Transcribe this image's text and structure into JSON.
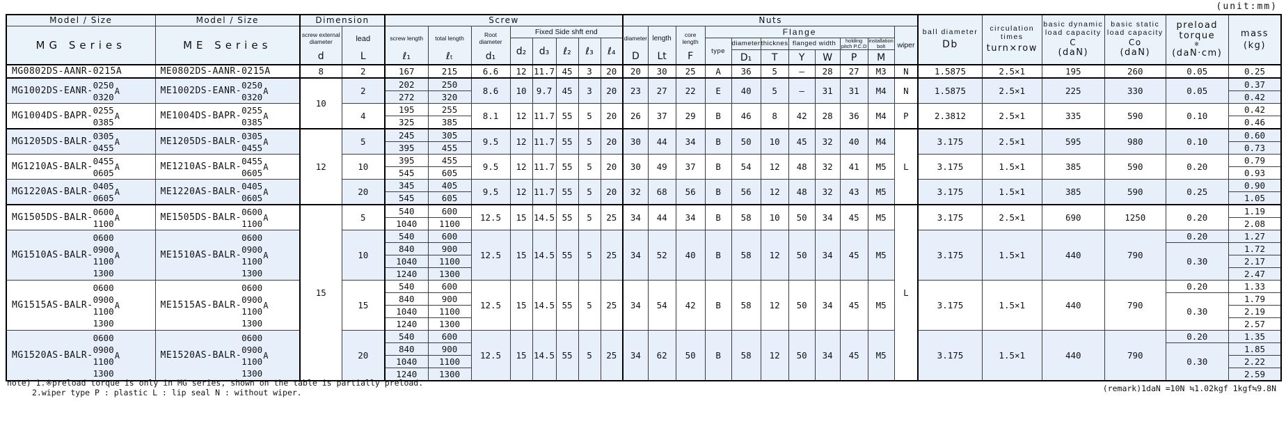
{
  "unit_label": "(unit:mm)",
  "header": {
    "model_size": "Model / Size",
    "mg_series": "MG Series",
    "me_series": "ME Series",
    "dimension": "Dimension",
    "screw": "Screw",
    "nuts": "Nuts",
    "screw_external_diameter": "screw external diameter",
    "d": "d",
    "lead": "lead",
    "L": "L",
    "screw_length": "screw length",
    "l1": "ℓ₁",
    "total_length": "total length",
    "lt": "ℓₜ",
    "root_diameter": "Root diameter",
    "d1": "d₁",
    "fixed_side": "Fixed Side shft end",
    "d2": "d₂",
    "d3": "d₃",
    "l2": "ℓ₂",
    "l3": "ℓ₃",
    "l4": "ℓ₄",
    "diameter": "diameter",
    "D": "D",
    "length": "length",
    "Lt": "Lt",
    "core_length": "core length",
    "F": "F",
    "flange": "Flange",
    "type": "type",
    "flange_diameter": "diameter",
    "D1": "D₁",
    "thickness": "thickness",
    "T": "T",
    "flanged_width": "flanged width",
    "Y": "Y",
    "W": "W",
    "holding_pitch_1": "holding",
    "holding_pitch_2": "pitch P.C.D",
    "P": "P",
    "installation_1": "installation",
    "installation_2": "bolt",
    "M": "M",
    "wiper": "wiper",
    "ball_diameter": "ball diameter",
    "Db": "Db",
    "circulation_times": "circulation times",
    "turn_row": "turn×row",
    "basic_dynamic": "basic dynamic load capacity",
    "C": "C",
    "daN": "(daN)",
    "basic_static": "basic static load capacity",
    "Co": "Co",
    "preload_torque": "preload torque",
    "ref_mark": "※",
    "daN_cm": "(daN·cm)",
    "mass": "mass",
    "kg": "(kg)"
  },
  "group_top_rows": [
    1,
    3,
    6
  ],
  "rows": [
    {
      "shaded": false,
      "mg": {
        "name": "MG0802DS-AANR-0215A"
      },
      "me": {
        "name": "ME0802DS-AANR-0215A"
      },
      "d": {
        "value": "8",
        "rowspan": 1
      },
      "lead": "2",
      "l1": [
        "167"
      ],
      "lt": [
        "215"
      ],
      "d1": "6.6",
      "d2": "12",
      "d3": "11.7",
      "l2": "45",
      "l3": "3",
      "l4": "20",
      "D": "20",
      "Lt": "30",
      "F": "25",
      "type": "A",
      "D1": "36",
      "T": "5",
      "Y": "—",
      "W": "28",
      "P": "27",
      "M": "M3",
      "wiper": {
        "value": "N",
        "rowspan": 1
      },
      "Db": "1.5875",
      "circ": "2.5×1",
      "C": "195",
      "Co": "260",
      "preload": [
        {
          "start": 0,
          "rowspan": 1,
          "value": "0.05"
        }
      ],
      "mass": [
        "0.25"
      ]
    },
    {
      "shaded": true,
      "mg": {
        "name": "MG1002DS-EANR-",
        "sizes": [
          "0250",
          "0320"
        ],
        "suffix": "A"
      },
      "me": {
        "name": "ME1002DS-EANR-",
        "sizes": [
          "0250",
          "0320"
        ],
        "suffix": "A"
      },
      "d": {
        "value": "10",
        "rowspan": 4
      },
      "lead": "2",
      "l1": [
        "202",
        "272"
      ],
      "lt": [
        "250",
        "320"
      ],
      "d1": "8.6",
      "d2": "10",
      "d3": "9.7",
      "l2": "45",
      "l3": "3",
      "l4": "20",
      "D": "23",
      "Lt": "27",
      "F": "22",
      "type": "E",
      "D1": "40",
      "T": "5",
      "Y": "—",
      "W": "31",
      "P": "31",
      "M": "M4",
      "wiper": {
        "value": "N",
        "rowspan": 2
      },
      "Db": "1.5875",
      "circ": "2.5×1",
      "C": "225",
      "Co": "330",
      "preload": [
        {
          "start": 0,
          "rowspan": 2,
          "value": "0.05"
        }
      ],
      "mass": [
        "0.37",
        "0.42"
      ]
    },
    {
      "shaded": false,
      "mg": {
        "name": "MG1004DS-BAPR-",
        "sizes": [
          "0255",
          "0385"
        ],
        "suffix": "A"
      },
      "me": {
        "name": "ME1004DS-BAPR-",
        "sizes": [
          "0255",
          "0385"
        ],
        "suffix": "A"
      },
      "lead": "4",
      "l1": [
        "195",
        "325"
      ],
      "lt": [
        "255",
        "385"
      ],
      "d1": "8.1",
      "d2": "12",
      "d3": "11.7",
      "l2": "55",
      "l3": "5",
      "l4": "20",
      "D": "26",
      "Lt": "37",
      "F": "29",
      "type": "B",
      "D1": "46",
      "T": "8",
      "Y": "42",
      "W": "28",
      "P": "36",
      "M": "M4",
      "wiper": {
        "value": "P",
        "rowspan": 2
      },
      "Db": "2.3812",
      "circ": "2.5×1",
      "C": "335",
      "Co": "590",
      "preload": [
        {
          "start": 0,
          "rowspan": 2,
          "value": "0.10"
        }
      ],
      "mass": [
        "0.42",
        "0.46"
      ]
    },
    {
      "shaded": true,
      "mg": {
        "name": "MG1205DS-BALR-",
        "sizes": [
          "0305",
          "0455"
        ],
        "suffix": "A"
      },
      "me": {
        "name": "ME1205DS-BALR-",
        "sizes": [
          "0305",
          "0455"
        ],
        "suffix": "A"
      },
      "d": {
        "value": "12",
        "rowspan": 6
      },
      "lead": "5",
      "l1": [
        "245",
        "395"
      ],
      "lt": [
        "305",
        "455"
      ],
      "d1": "9.5",
      "d2": "12",
      "d3": "11.7",
      "l2": "55",
      "l3": "5",
      "l4": "20",
      "D": "30",
      "Lt": "44",
      "F": "34",
      "type": "B",
      "D1": "50",
      "T": "10",
      "Y": "45",
      "W": "32",
      "P": "40",
      "M": "M4",
      "wiper": {
        "value": "L",
        "rowspan": 6
      },
      "Db": "3.175",
      "circ": "2.5×1",
      "C": "595",
      "Co": "980",
      "preload": [
        {
          "start": 0,
          "rowspan": 2,
          "value": "0.10"
        }
      ],
      "mass": [
        "0.60",
        "0.73"
      ]
    },
    {
      "shaded": false,
      "mg": {
        "name": "MG1210AS-BALR-",
        "sizes": [
          "0455",
          "0605"
        ],
        "suffix": "A"
      },
      "me": {
        "name": "ME1210AS-BALR-",
        "sizes": [
          "0455",
          "0605"
        ],
        "suffix": "A"
      },
      "lead": "10",
      "l1": [
        "395",
        "545"
      ],
      "lt": [
        "455",
        "605"
      ],
      "d1": "9.5",
      "d2": "12",
      "d3": "11.7",
      "l2": "55",
      "l3": "5",
      "l4": "20",
      "D": "30",
      "Lt": "49",
      "F": "37",
      "type": "B",
      "D1": "54",
      "T": "12",
      "Y": "48",
      "W": "32",
      "P": "41",
      "M": "M5",
      "Db": "3.175",
      "circ": "1.5×1",
      "C": "385",
      "Co": "590",
      "preload": [
        {
          "start": 0,
          "rowspan": 2,
          "value": "0.20"
        }
      ],
      "mass": [
        "0.79",
        "0.93"
      ]
    },
    {
      "shaded": true,
      "mg": {
        "name": "MG1220AS-BALR-",
        "sizes": [
          "0405",
          "0605"
        ],
        "suffix": "A"
      },
      "me": {
        "name": "ME1220AS-BALR-",
        "sizes": [
          "0405",
          "0605"
        ],
        "suffix": "A"
      },
      "lead": "20",
      "l1": [
        "345",
        "545"
      ],
      "lt": [
        "405",
        "605"
      ],
      "d1": "9.5",
      "d2": "12",
      "d3": "11.7",
      "l2": "55",
      "l3": "5",
      "l4": "20",
      "D": "32",
      "Lt": "68",
      "F": "56",
      "type": "B",
      "D1": "56",
      "T": "12",
      "Y": "48",
      "W": "32",
      "P": "43",
      "M": "M5",
      "Db": "3.175",
      "circ": "1.5×1",
      "C": "385",
      "Co": "590",
      "preload": [
        {
          "start": 0,
          "rowspan": 2,
          "value": "0.25"
        }
      ],
      "mass": [
        "0.90",
        "1.05"
      ]
    },
    {
      "shaded": false,
      "mg": {
        "name": "MG1505DS-BALR-",
        "sizes": [
          "0600",
          "1100"
        ],
        "suffix": "A"
      },
      "me": {
        "name": "ME1505DS-BALR-",
        "sizes": [
          "0600",
          "1100"
        ],
        "suffix": "A"
      },
      "d": {
        "value": "15",
        "rowspan": 14
      },
      "lead": "5",
      "l1": [
        "540",
        "1040"
      ],
      "lt": [
        "600",
        "1100"
      ],
      "d1": "12.5",
      "d2": "15",
      "d3": "14.5",
      "l2": "55",
      "l3": "5",
      "l4": "25",
      "D": "34",
      "Lt": "44",
      "F": "34",
      "type": "B",
      "D1": "58",
      "T": "10",
      "Y": "50",
      "W": "34",
      "P": "45",
      "M": "M5",
      "wiper": {
        "value": "L",
        "rowspan": 14
      },
      "Db": "3.175",
      "circ": "2.5×1",
      "C": "690",
      "Co": "1250",
      "preload": [
        {
          "start": 0,
          "rowspan": 2,
          "value": "0.20"
        }
      ],
      "mass": [
        "1.19",
        "2.08"
      ]
    },
    {
      "shaded": true,
      "mg": {
        "name": "MG1510AS-BALR-",
        "sizes": [
          "0600",
          "0900",
          "1100",
          "1300"
        ],
        "suffix": "A"
      },
      "me": {
        "name": "ME1510AS-BALR-",
        "sizes": [
          "0600",
          "0900",
          "1100",
          "1300"
        ],
        "suffix": "A"
      },
      "lead": "10",
      "l1": [
        "540",
        "840",
        "1040",
        "1240"
      ],
      "lt": [
        "600",
        "900",
        "1100",
        "1300"
      ],
      "d1": "12.5",
      "d2": "15",
      "d3": "14.5",
      "l2": "55",
      "l3": "5",
      "l4": "25",
      "D": "34",
      "Lt": "52",
      "F": "40",
      "type": "B",
      "D1": "58",
      "T": "12",
      "Y": "50",
      "W": "34",
      "P": "45",
      "M": "M5",
      "Db": "3.175",
      "circ": "1.5×1",
      "C": "440",
      "Co": "790",
      "preload": [
        {
          "start": 0,
          "rowspan": 1,
          "value": "0.20"
        },
        {
          "start": 1,
          "rowspan": 3,
          "value": "0.30"
        }
      ],
      "mass": [
        "1.27",
        "1.72",
        "2.17",
        "2.47"
      ]
    },
    {
      "shaded": false,
      "mg": {
        "name": "MG1515AS-BALR-",
        "sizes": [
          "0600",
          "0900",
          "1100",
          "1300"
        ],
        "suffix": "A"
      },
      "me": {
        "name": "ME1515AS-BALR-",
        "sizes": [
          "0600",
          "0900",
          "1100",
          "1300"
        ],
        "suffix": "A"
      },
      "lead": "15",
      "l1": [
        "540",
        "840",
        "1040",
        "1240"
      ],
      "lt": [
        "600",
        "900",
        "1100",
        "1300"
      ],
      "d1": "12.5",
      "d2": "15",
      "d3": "14.5",
      "l2": "55",
      "l3": "5",
      "l4": "25",
      "D": "34",
      "Lt": "54",
      "F": "42",
      "type": "B",
      "D1": "58",
      "T": "12",
      "Y": "50",
      "W": "34",
      "P": "45",
      "M": "M5",
      "Db": "3.175",
      "circ": "1.5×1",
      "C": "440",
      "Co": "790",
      "preload": [
        {
          "start": 0,
          "rowspan": 1,
          "value": "0.20"
        },
        {
          "start": 1,
          "rowspan": 3,
          "value": "0.30"
        }
      ],
      "mass": [
        "1.33",
        "1.79",
        "2.19",
        "2.57"
      ]
    },
    {
      "shaded": true,
      "mg": {
        "name": "MG1520AS-BALR-",
        "sizes": [
          "0600",
          "0900",
          "1100",
          "1300"
        ],
        "suffix": "A"
      },
      "me": {
        "name": "ME1520AS-BALR-",
        "sizes": [
          "0600",
          "0900",
          "1100",
          "1300"
        ],
        "suffix": "A"
      },
      "lead": "20",
      "l1": [
        "540",
        "840",
        "1040",
        "1240"
      ],
      "lt": [
        "600",
        "900",
        "1100",
        "1300"
      ],
      "d1": "12.5",
      "d2": "15",
      "d3": "14.5",
      "l2": "55",
      "l3": "5",
      "l4": "25",
      "D": "34",
      "Lt": "62",
      "F": "50",
      "type": "B",
      "D1": "58",
      "T": "12",
      "Y": "50",
      "W": "34",
      "P": "45",
      "M": "M5",
      "Db": "3.175",
      "circ": "1.5×1",
      "C": "440",
      "Co": "790",
      "preload": [
        {
          "start": 0,
          "rowspan": 1,
          "value": "0.20"
        },
        {
          "start": 1,
          "rowspan": 3,
          "value": "0.30"
        }
      ],
      "mass": [
        "1.35",
        "1.85",
        "2.22",
        "2.59"
      ]
    }
  ],
  "notes": [
    "note) 1.※preload torque is only in MG series, shown on the table is partially preload.",
    "2.wiper type  P : plastic  L : lip seal  N : without wiper."
  ],
  "remark": "(remark)1daN =10N ≒1.02kgf  1kgf≒9.8N"
}
